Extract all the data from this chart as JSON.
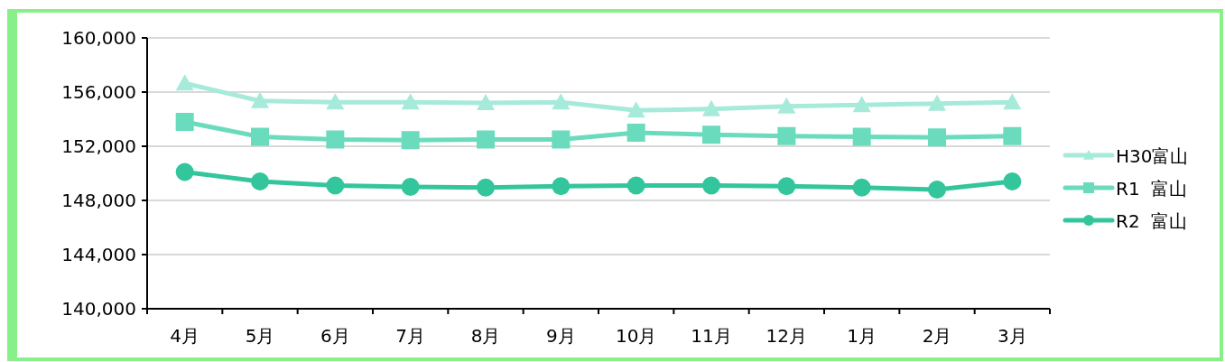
{
  "chart_data": {
    "type": "line",
    "categories": [
      "4月",
      "5月",
      "6月",
      "7月",
      "8月",
      "9月",
      "10月",
      "11月",
      "12月",
      "1月",
      "2月",
      "3月"
    ],
    "series": [
      {
        "name": "H30富山",
        "color": "#a6eada",
        "marker": "triangle",
        "values": [
          156650,
          155350,
          155250,
          155250,
          155200,
          155250,
          154650,
          154750,
          154950,
          155050,
          155150,
          155250
        ]
      },
      {
        "name": "R1  富山",
        "color": "#6adbbd",
        "marker": "square",
        "values": [
          153800,
          152700,
          152500,
          152450,
          152500,
          152500,
          153000,
          152850,
          152750,
          152700,
          152650,
          152750
        ]
      },
      {
        "name": "R2  富山",
        "color": "#33c59c",
        "marker": "circle",
        "values": [
          150100,
          149400,
          149100,
          149000,
          148950,
          149050,
          149100,
          149100,
          149050,
          148950,
          148800,
          149400
        ]
      }
    ],
    "ylim": [
      140000,
      160000
    ],
    "yticks": [
      {
        "value": 140000,
        "label": "140,000"
      },
      {
        "value": 144000,
        "label": "144,000"
      },
      {
        "value": 148000,
        "label": "148,000"
      },
      {
        "value": 152000,
        "label": "152,000"
      },
      {
        "value": 156000,
        "label": "156,000"
      },
      {
        "value": 160000,
        "label": "160,000"
      }
    ],
    "grid": "y",
    "legend": "right",
    "line_style": "solid"
  }
}
